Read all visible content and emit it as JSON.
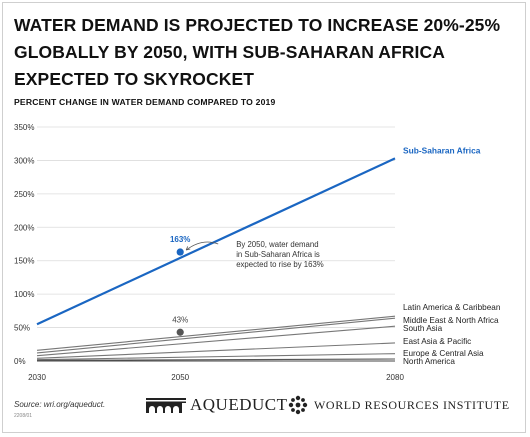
{
  "headline": "WATER DEMAND IS PROJECTED TO INCREASE 20%-25% GLOBALLY BY 2050, WITH SUB-SAHARAN AFRICA EXPECTED TO SKYROCKET",
  "chart_data": {
    "type": "line",
    "title": "PERCENT CHANGE IN WATER DEMAND COMPARED TO 2019",
    "x_ticks": [
      "2030",
      "2050",
      "2080"
    ],
    "y_ticks": [
      "0%",
      "50%",
      "100%",
      "150%",
      "200%",
      "250%",
      "300%",
      "350%"
    ],
    "xlim": [
      2030,
      2080
    ],
    "ylim": [
      0,
      350
    ],
    "grid": true,
    "series": [
      {
        "name": "Sub-Saharan Africa",
        "x": [
          2030,
          2080
        ],
        "values": [
          55,
          303
        ],
        "color": "#1a66c2",
        "highlight": true
      },
      {
        "name": "Latin America & Caribbean",
        "x": [
          2030,
          2080
        ],
        "values": [
          16,
          67
        ],
        "color": "#777777"
      },
      {
        "name": "Middle East & North Africa",
        "x": [
          2030,
          2080
        ],
        "values": [
          12,
          64
        ],
        "color": "#777777"
      },
      {
        "name": "South Asia",
        "x": [
          2030,
          2080
        ],
        "values": [
          8,
          52
        ],
        "color": "#777777"
      },
      {
        "name": "East Asia & Pacific",
        "x": [
          2030,
          2080
        ],
        "values": [
          4,
          27
        ],
        "color": "#777777"
      },
      {
        "name": "Europe & Central Asia",
        "x": [
          2030,
          2080
        ],
        "values": [
          2,
          11
        ],
        "color": "#777777"
      },
      {
        "name": "North America",
        "x": [
          2030,
          2080
        ],
        "values": [
          1,
          3
        ],
        "color": "#555555"
      }
    ],
    "markers": [
      {
        "x": 2050,
        "y": 163,
        "label": "163%",
        "color": "#1a66c2"
      },
      {
        "x": 2050,
        "y": 43,
        "label": "43%",
        "color": "#555555"
      }
    ],
    "annotation": [
      "By 2050, water demand",
      "in Sub-Saharan Africa is",
      "expected to rise by 163%"
    ]
  },
  "footer": {
    "source": "Source: wri.org/aqueduct.",
    "code": "2208/01",
    "aqueduct_label": "AQUEDUCT",
    "wri_label": "WORLD RESOURCES INSTITUTE"
  }
}
